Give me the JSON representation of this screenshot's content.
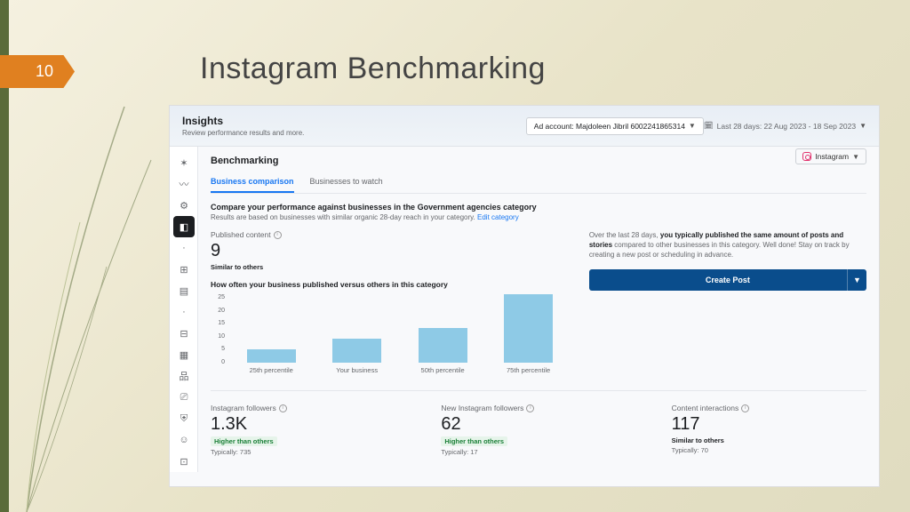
{
  "slide": {
    "number": "10",
    "title": "Instagram Benchmarking"
  },
  "header": {
    "title": "Insights",
    "subtitle": "Review performance results and more.",
    "ad_account_label": "Ad account: Majdoleen Jibril 6002241865314",
    "date_range": "Last 28 days: 22 Aug 2023 - 18 Sep 2023"
  },
  "benchmarking": {
    "title": "Benchmarking",
    "platform": "Instagram",
    "tabs": {
      "business_comparison": "Business comparison",
      "businesses_to_watch": "Businesses to watch"
    },
    "compare_heading": "Compare your performance against businesses in the Government agencies category",
    "compare_sub": "Results are based on businesses with similar organic 28-day reach in your category.",
    "edit_category": "Edit category"
  },
  "published": {
    "label": "Published content",
    "value": "9",
    "badge": "Similar to others"
  },
  "summary": {
    "prefix": "Over the last 28 days, ",
    "bold": "you typically published the same amount of posts and stories",
    "suffix": " compared to other businesses in this category. Well done! Stay on track by creating a new post or scheduling in advance.",
    "button": "Create Post"
  },
  "chart": {
    "title": "How often your business published versus others in this category",
    "y_ticks": [
      "25",
      "20",
      "15",
      "10",
      "5",
      "0"
    ],
    "y_max": 27,
    "bars": [
      {
        "label": "25th percentile",
        "value": 5
      },
      {
        "label": "Your business",
        "value": 9
      },
      {
        "label": "50th percentile",
        "value": 13
      },
      {
        "label": "75th percentile",
        "value": 26
      }
    ],
    "bar_color": "#8ecae6"
  },
  "stats": {
    "followers": {
      "label": "Instagram followers",
      "value": "1.3K",
      "badge": "Higher than others",
      "typically": "Typically: 735"
    },
    "new_followers": {
      "label": "New Instagram followers",
      "value": "62",
      "badge": "Higher than others",
      "typically": "Typically: 17"
    },
    "interactions": {
      "label": "Content interactions",
      "value": "117",
      "badge": "Similar to others",
      "typically": "Typically: 70"
    }
  }
}
